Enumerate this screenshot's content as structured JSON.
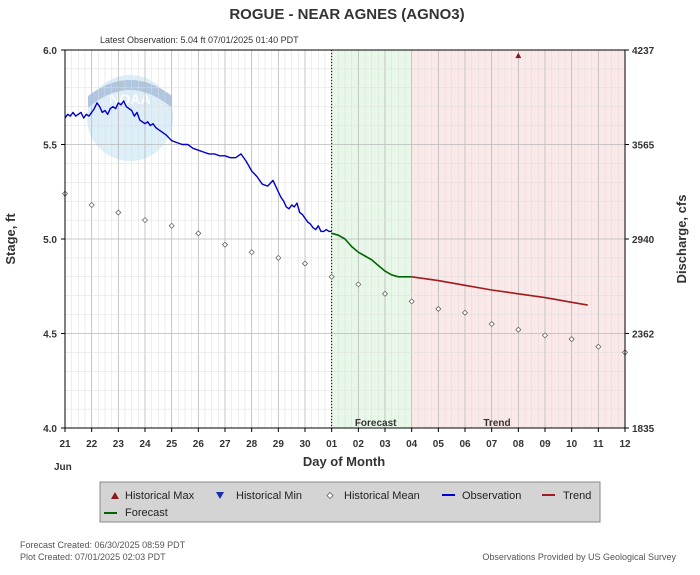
{
  "header": {
    "title": "ROGUE - NEAR AGNES  (AGNO3)",
    "latest_observation": "Latest Observation: 5.04 ft 07/01/2025 01:40 PDT"
  },
  "footer": {
    "forecast_created": "Forecast Created: 06/30/2025 08:59 PDT",
    "plot_created": "Plot Created: 07/01/2025 02:03 PDT",
    "provider": "Observations Provided by US Geological Survey"
  },
  "legend": {
    "items": [
      {
        "key": "historical-max",
        "label": "Historical Max",
        "color": "#8b1a1a"
      },
      {
        "key": "historical-min",
        "label": "Historical Min",
        "color": "#1a2fb0"
      },
      {
        "key": "historical-mean",
        "label": "Historical Mean",
        "color": "#888888"
      },
      {
        "key": "observation",
        "label": "Observation",
        "color": "#0000cc"
      },
      {
        "key": "trend",
        "label": "Trend",
        "color": "#a01c1c"
      },
      {
        "key": "forecast",
        "label": "Forecast",
        "color": "#006400"
      }
    ]
  },
  "chart_data": {
    "type": "line",
    "title": "ROGUE - NEAR AGNES  (AGNO3)",
    "xlabel": "Day of Month",
    "ylabel": "Stage, ft",
    "y2label": "Discharge, cfs",
    "month_label": "Jun",
    "x_ticks": [
      "21",
      "22",
      "23",
      "24",
      "25",
      "26",
      "27",
      "28",
      "29",
      "30",
      "01",
      "02",
      "03",
      "04",
      "05",
      "06",
      "07",
      "08",
      "09",
      "10",
      "11",
      "12"
    ],
    "xlim": [
      0,
      21
    ],
    "ylim": [
      4.0,
      6.0
    ],
    "y_ticks": [
      "4.0",
      "4.5",
      "5.0",
      "5.5",
      "6.0"
    ],
    "y2_ticks": [
      {
        "stage": 4.0,
        "label": "1835"
      },
      {
        "stage": 4.5,
        "label": "2362"
      },
      {
        "stage": 5.0,
        "label": "2940"
      },
      {
        "stage": 5.5,
        "label": "3565"
      },
      {
        "stage": 6.0,
        "label": "4237"
      }
    ],
    "grid": true,
    "now_x": 10.0,
    "regions": {
      "forecast": {
        "start": 10.0,
        "end": 13.0,
        "label": "Forecast",
        "color": "#e8f8e8"
      },
      "trend": {
        "start": 13.0,
        "end": 21.0,
        "label": "Trend",
        "color": "#fbe9e9"
      }
    },
    "historical_max": {
      "x": 17.0,
      "y": 5.97
    },
    "series": [
      {
        "name": "Observation",
        "color": "#0000cc",
        "x": [
          0.0,
          0.1,
          0.2,
          0.3,
          0.4,
          0.5,
          0.6,
          0.7,
          0.8,
          0.9,
          1.0,
          1.1,
          1.2,
          1.3,
          1.4,
          1.5,
          1.6,
          1.7,
          1.8,
          1.9,
          2.0,
          2.1,
          2.2,
          2.3,
          2.4,
          2.5,
          2.6,
          2.7,
          2.8,
          2.9,
          3.0,
          3.1,
          3.2,
          3.3,
          3.4,
          3.5,
          3.6,
          3.8,
          4.0,
          4.2,
          4.4,
          4.6,
          4.8,
          5.0,
          5.2,
          5.4,
          5.6,
          5.8,
          6.0,
          6.2,
          6.4,
          6.6,
          6.8,
          7.0,
          7.2,
          7.4,
          7.6,
          7.8,
          8.0,
          8.1,
          8.2,
          8.3,
          8.4,
          8.5,
          8.6,
          8.7,
          8.8,
          8.9,
          9.0,
          9.1,
          9.2,
          9.3,
          9.4,
          9.5,
          9.6,
          9.7,
          9.8,
          9.9,
          10.0
        ],
        "y": [
          5.64,
          5.66,
          5.65,
          5.67,
          5.65,
          5.66,
          5.67,
          5.64,
          5.66,
          5.65,
          5.67,
          5.69,
          5.72,
          5.7,
          5.67,
          5.68,
          5.66,
          5.69,
          5.7,
          5.69,
          5.72,
          5.71,
          5.73,
          5.7,
          5.69,
          5.68,
          5.65,
          5.67,
          5.63,
          5.62,
          5.61,
          5.62,
          5.6,
          5.61,
          5.59,
          5.58,
          5.57,
          5.55,
          5.52,
          5.51,
          5.5,
          5.5,
          5.48,
          5.47,
          5.46,
          5.45,
          5.45,
          5.44,
          5.44,
          5.43,
          5.43,
          5.45,
          5.41,
          5.36,
          5.33,
          5.29,
          5.28,
          5.31,
          5.25,
          5.22,
          5.2,
          5.17,
          5.16,
          5.18,
          5.17,
          5.19,
          5.14,
          5.13,
          5.11,
          5.09,
          5.08,
          5.06,
          5.05,
          5.07,
          5.04,
          5.04,
          5.05,
          5.04,
          5.04
        ]
      },
      {
        "name": "Forecast",
        "color": "#006400",
        "x": [
          10.0,
          10.25,
          10.5,
          10.75,
          11.0,
          11.25,
          11.5,
          11.75,
          12.0,
          12.25,
          12.5,
          12.75,
          13.0
        ],
        "y": [
          5.03,
          5.02,
          5.0,
          4.96,
          4.93,
          4.91,
          4.89,
          4.86,
          4.83,
          4.81,
          4.8,
          4.8,
          4.8
        ]
      },
      {
        "name": "Trend",
        "color": "#a01c1c",
        "x": [
          13.0,
          14.0,
          15.0,
          16.0,
          17.0,
          18.0,
          19.0,
          19.6
        ],
        "y": [
          4.8,
          4.78,
          4.755,
          4.73,
          4.71,
          4.69,
          4.665,
          4.65
        ]
      },
      {
        "name": "Historical Mean",
        "color": "#666666",
        "x": [
          0,
          1,
          2,
          3,
          4,
          5,
          6,
          7,
          8,
          9,
          10,
          11,
          12,
          13,
          14,
          15,
          16,
          17,
          18,
          19,
          20,
          21
        ],
        "y": [
          5.24,
          5.18,
          5.14,
          5.1,
          5.07,
          5.03,
          4.97,
          4.93,
          4.9,
          4.87,
          4.8,
          4.76,
          4.71,
          4.67,
          4.63,
          4.61,
          4.55,
          4.52,
          4.49,
          4.47,
          4.43,
          4.4
        ]
      }
    ]
  }
}
